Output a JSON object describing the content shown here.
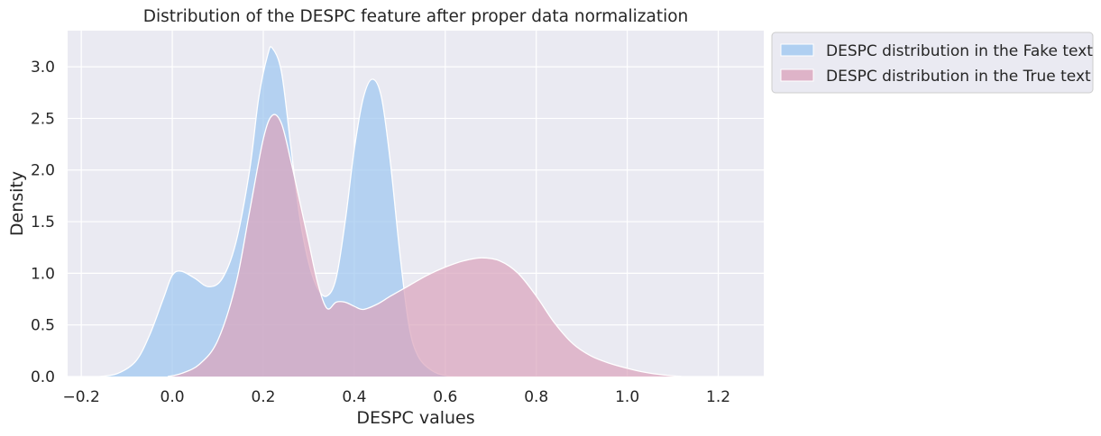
{
  "chart_data": {
    "type": "area",
    "title": "Distribution of the DESPC feature after proper data normalization",
    "xlabel": "DESPC values",
    "ylabel": "Density",
    "xlim": [
      -0.23,
      1.3
    ],
    "ylim": [
      0,
      3.35
    ],
    "xticks": [
      -0.2,
      0.0,
      0.2,
      0.4,
      0.6,
      0.8,
      1.0,
      1.2
    ],
    "xtick_labels": [
      "−0.2",
      "0.0",
      "0.2",
      "0.4",
      "0.6",
      "0.8",
      "1.0",
      "1.2"
    ],
    "yticks": [
      0.0,
      0.5,
      1.0,
      1.5,
      2.0,
      2.5,
      3.0
    ],
    "ytick_labels": [
      "0.0",
      "0.5",
      "1.0",
      "1.5",
      "2.0",
      "2.5",
      "3.0"
    ],
    "grid": true,
    "legend_position": "outside upper-right",
    "series": [
      {
        "name": "DESPC distribution in the Fake text",
        "color": "#a0c8f0",
        "points": [
          [
            -0.16,
            0.0
          ],
          [
            -0.12,
            0.03
          ],
          [
            -0.08,
            0.15
          ],
          [
            -0.05,
            0.4
          ],
          [
            -0.02,
            0.75
          ],
          [
            0.0,
            0.98
          ],
          [
            0.02,
            1.02
          ],
          [
            0.05,
            0.95
          ],
          [
            0.08,
            0.87
          ],
          [
            0.11,
            0.95
          ],
          [
            0.14,
            1.3
          ],
          [
            0.17,
            2.0
          ],
          [
            0.19,
            2.7
          ],
          [
            0.21,
            3.12
          ],
          [
            0.22,
            3.18
          ],
          [
            0.24,
            2.95
          ],
          [
            0.26,
            2.25
          ],
          [
            0.28,
            1.55
          ],
          [
            0.3,
            1.1
          ],
          [
            0.32,
            0.85
          ],
          [
            0.34,
            0.78
          ],
          [
            0.36,
            0.95
          ],
          [
            0.38,
            1.5
          ],
          [
            0.4,
            2.2
          ],
          [
            0.42,
            2.7
          ],
          [
            0.44,
            2.88
          ],
          [
            0.46,
            2.7
          ],
          [
            0.48,
            2.05
          ],
          [
            0.5,
            1.2
          ],
          [
            0.52,
            0.5
          ],
          [
            0.54,
            0.2
          ],
          [
            0.57,
            0.06
          ],
          [
            0.6,
            0.01
          ],
          [
            0.63,
            0.0
          ]
        ]
      },
      {
        "name": "DESPC distribution in the True text",
        "color": "#dba5bd",
        "points": [
          [
            -0.01,
            0.0
          ],
          [
            0.02,
            0.03
          ],
          [
            0.06,
            0.12
          ],
          [
            0.1,
            0.35
          ],
          [
            0.14,
            0.9
          ],
          [
            0.17,
            1.6
          ],
          [
            0.2,
            2.3
          ],
          [
            0.22,
            2.53
          ],
          [
            0.24,
            2.45
          ],
          [
            0.26,
            2.1
          ],
          [
            0.28,
            1.7
          ],
          [
            0.3,
            1.3
          ],
          [
            0.32,
            0.9
          ],
          [
            0.34,
            0.66
          ],
          [
            0.36,
            0.72
          ],
          [
            0.38,
            0.72
          ],
          [
            0.4,
            0.68
          ],
          [
            0.42,
            0.65
          ],
          [
            0.45,
            0.7
          ],
          [
            0.48,
            0.78
          ],
          [
            0.52,
            0.88
          ],
          [
            0.56,
            0.98
          ],
          [
            0.6,
            1.06
          ],
          [
            0.64,
            1.12
          ],
          [
            0.68,
            1.15
          ],
          [
            0.72,
            1.12
          ],
          [
            0.76,
            1.0
          ],
          [
            0.8,
            0.78
          ],
          [
            0.84,
            0.52
          ],
          [
            0.88,
            0.32
          ],
          [
            0.92,
            0.2
          ],
          [
            0.96,
            0.13
          ],
          [
            1.0,
            0.08
          ],
          [
            1.04,
            0.04
          ],
          [
            1.08,
            0.015
          ],
          [
            1.12,
            0.0
          ]
        ]
      }
    ]
  }
}
